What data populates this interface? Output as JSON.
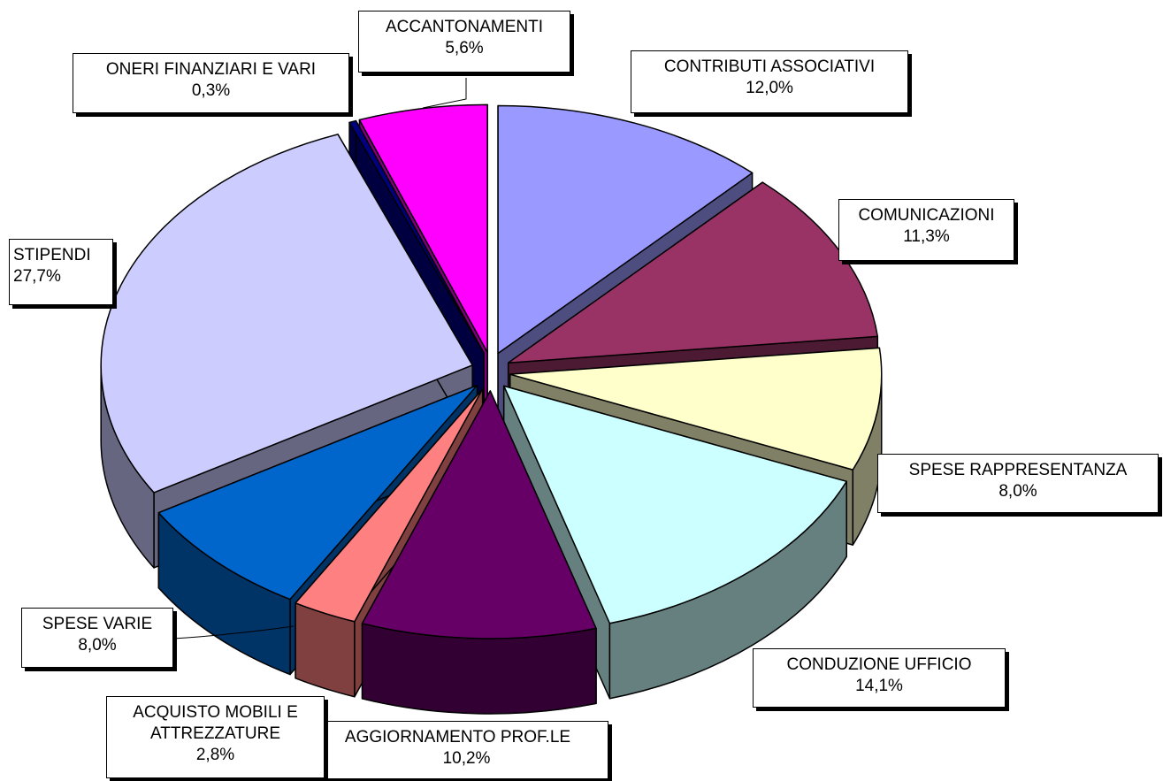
{
  "chart_data": {
    "type": "pie3d",
    "categories": [
      "CONTRIBUTI ASSOCIATIVI",
      "COMUNICAZIONI",
      "SPESE RAPPRESENTANZA",
      "CONDUZIONE UFFICIO",
      "AGGIORNAMENTO PROF.LE",
      "ACQUISTO MOBILI E ATTREZZATURE",
      "SPESE VARIE",
      "STIPENDI",
      "ONERI FINANZIARI E VARI",
      "ACCANTONAMENTI"
    ],
    "values": [
      12.0,
      11.3,
      8.0,
      14.1,
      10.2,
      2.8,
      8.0,
      27.7,
      0.3,
      5.6
    ],
    "value_labels": [
      "12,0%",
      "11,3%",
      "8,0%",
      "14,1%",
      "10,2%",
      "2,8%",
      "8,0%",
      "27,7%",
      "0,3%",
      "5,6%"
    ],
    "colors": [
      "#9999ff",
      "#993366",
      "#ffffcc",
      "#ccffff",
      "#660066",
      "#ff8080",
      "#0066cc",
      "#ccccff",
      "#000080",
      "#ff00ff"
    ]
  }
}
